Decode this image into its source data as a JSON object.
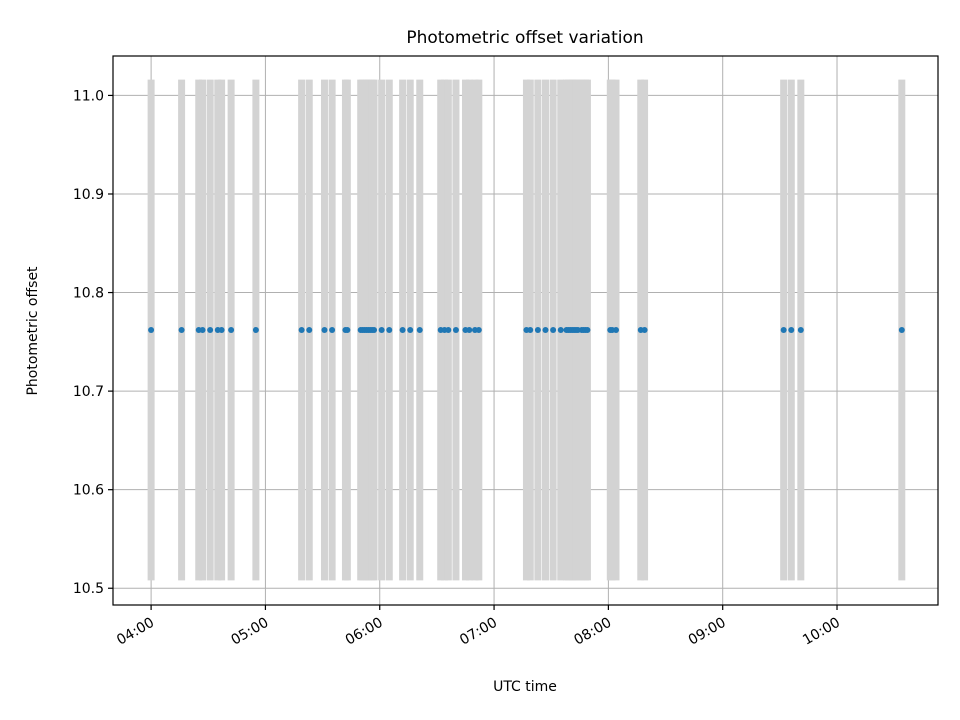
{
  "chart_data": {
    "type": "scatter",
    "title": "Photometric offset variation",
    "xlabel": "UTC time",
    "ylabel": "Photometric offset",
    "x_axis_type": "time",
    "xlim": [
      "03:40",
      "10:53"
    ],
    "ylim": [
      10.483,
      11.04
    ],
    "xticks": [
      "04:00",
      "05:00",
      "06:00",
      "07:00",
      "08:00",
      "09:00",
      "10:00"
    ],
    "yticks": [
      "10.5",
      "10.6",
      "10.7",
      "10.8",
      "10.9",
      "11.0"
    ],
    "grid": true,
    "errorbar_range": [
      10.508,
      11.016
    ],
    "colors": {
      "marker": "#1f77b4",
      "errorbar": "#d3d3d3",
      "grid": "#b0b0b0"
    },
    "series": [
      {
        "x": [
          "04:00",
          "04:16",
          "04:25",
          "04:27",
          "04:31",
          "04:35",
          "04:37",
          "04:42",
          "04:55",
          "05:19",
          "05:23",
          "05:31",
          "05:35",
          "05:42",
          "05:43",
          "05:50",
          "05:51",
          "05:52",
          "05:53",
          "05:54",
          "05:55",
          "05:56",
          "05:57",
          "06:01",
          "06:05",
          "06:12",
          "06:16",
          "06:21",
          "06:32",
          "06:34",
          "06:36",
          "06:40",
          "06:45",
          "06:47",
          "06:50",
          "06:52",
          "07:17",
          "07:19",
          "07:23",
          "07:27",
          "07:31",
          "07:35",
          "07:38",
          "07:39",
          "07:40",
          "07:41",
          "07:42",
          "07:43",
          "07:44",
          "07:46",
          "07:47",
          "07:48",
          "07:49",
          "08:01",
          "08:02",
          "08:04",
          "08:17",
          "08:19",
          "09:32",
          "09:36",
          "09:41",
          "10:34"
        ],
        "y": [
          10.762,
          10.762,
          10.762,
          10.762,
          10.762,
          10.762,
          10.762,
          10.762,
          10.762,
          10.762,
          10.762,
          10.762,
          10.762,
          10.762,
          10.762,
          10.762,
          10.762,
          10.762,
          10.762,
          10.762,
          10.762,
          10.762,
          10.762,
          10.762,
          10.762,
          10.762,
          10.762,
          10.762,
          10.762,
          10.762,
          10.762,
          10.762,
          10.762,
          10.762,
          10.762,
          10.762,
          10.762,
          10.762,
          10.762,
          10.762,
          10.762,
          10.762,
          10.762,
          10.762,
          10.762,
          10.762,
          10.762,
          10.762,
          10.762,
          10.762,
          10.762,
          10.762,
          10.762,
          10.762,
          10.762,
          10.762,
          10.762,
          10.762,
          10.762,
          10.762,
          10.762,
          10.762
        ]
      }
    ]
  }
}
